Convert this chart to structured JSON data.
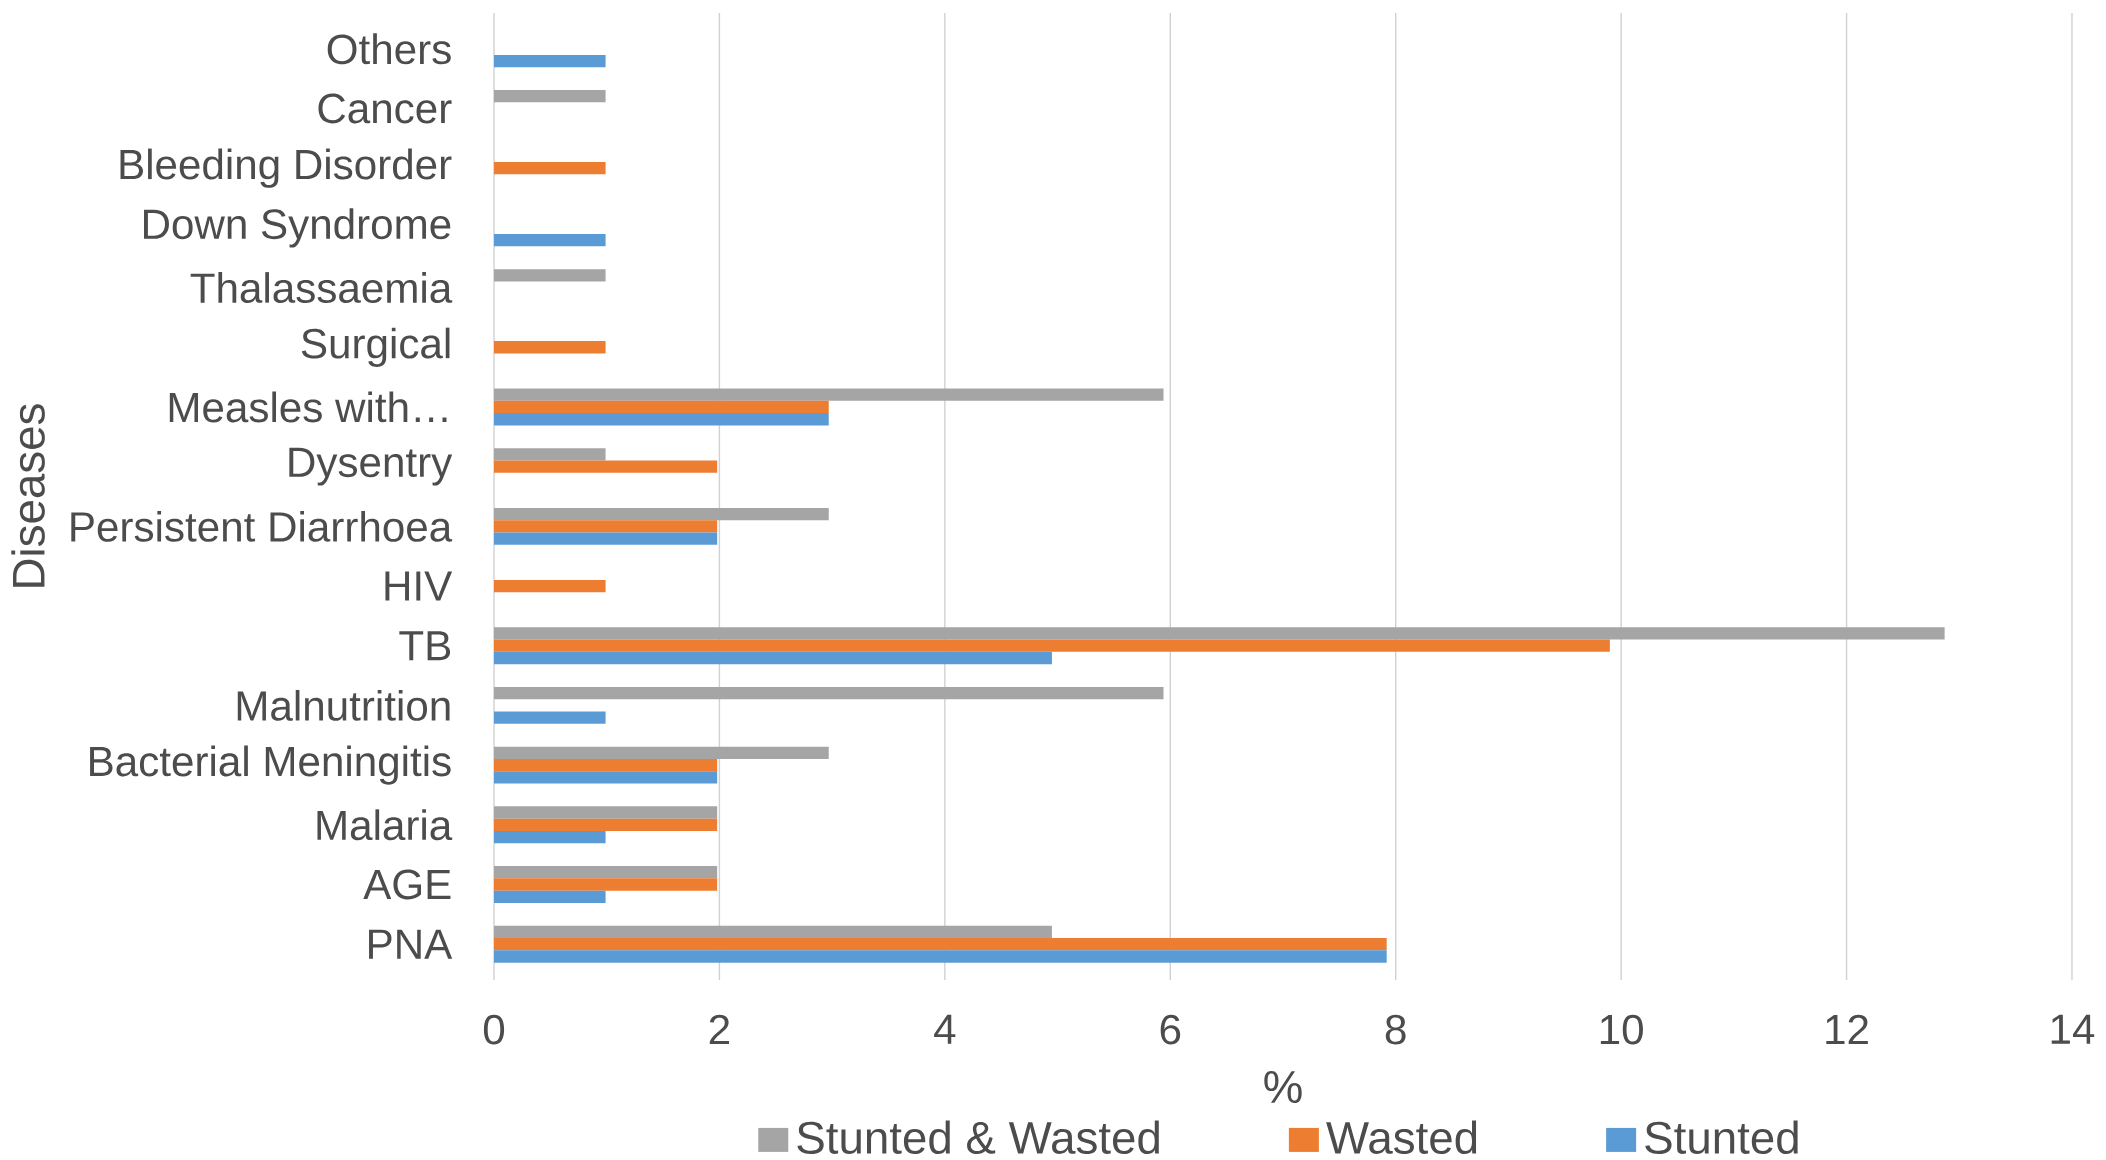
{
  "chart_data": {
    "type": "bar",
    "orientation": "horizontal",
    "xlabel": "%",
    "ylabel": "Diseases",
    "categories": [
      "Others",
      "Cancer",
      "Bleeding Disorder",
      "Down Syndrome",
      "Thalassaemia",
      "Surgical",
      "Measles with…",
      "Dysentry",
      "Persistent Diarrhoea",
      "HIV",
      "TB",
      "Malnutrition",
      "Bacterial Meningitis",
      "Malaria",
      "AGE",
      "PNA"
    ],
    "series": [
      {
        "name": "Stunted & Wasted",
        "color": "#a5a5a5",
        "values": [
          null,
          0.99,
          null,
          null,
          0.99,
          null,
          5.94,
          0.99,
          2.97,
          null,
          12.87,
          5.94,
          2.97,
          1.98,
          1.98,
          4.95
        ]
      },
      {
        "name": "Wasted",
        "color": "#ed7d31",
        "values": [
          null,
          null,
          0.99,
          null,
          null,
          0.99,
          2.97,
          1.98,
          1.98,
          0.99,
          9.9,
          null,
          1.98,
          1.98,
          1.98,
          7.92
        ]
      },
      {
        "name": "Stunted",
        "color": "#5b9bd5",
        "values": [
          0.99,
          null,
          null,
          0.99,
          null,
          null,
          2.97,
          null,
          1.98,
          null,
          4.95,
          0.99,
          1.98,
          0.99,
          0.99,
          7.92
        ]
      }
    ],
    "xlim": [
      0,
      14
    ],
    "xticks": [
      0,
      2,
      4,
      6,
      8,
      10,
      12,
      14
    ],
    "grid": "x",
    "legend": "bottom"
  }
}
